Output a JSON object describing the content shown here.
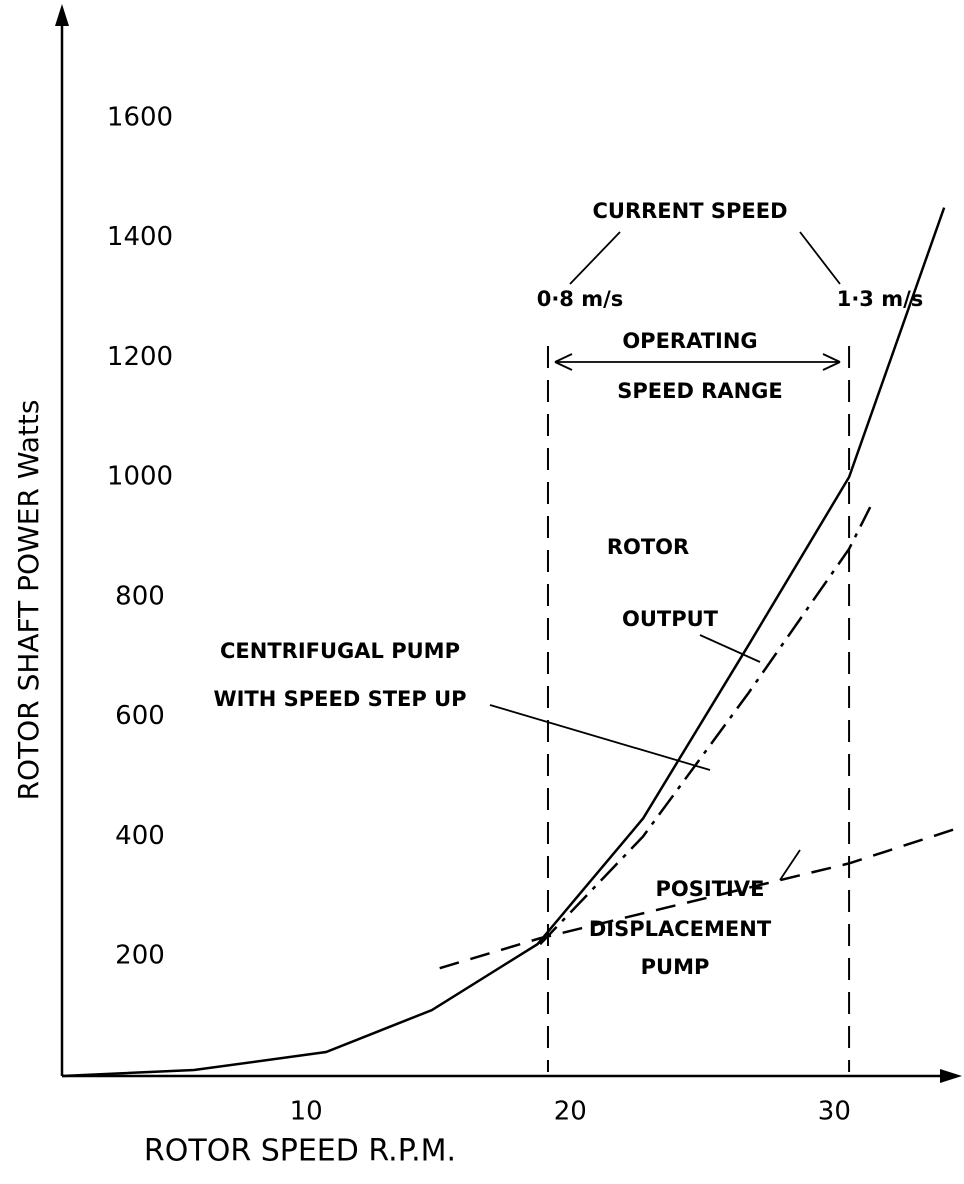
{
  "chart_data": {
    "type": "line",
    "x_label": "ROTOR SPEED   R.P.M.",
    "y_label": "ROTOR SHAFT POWER  Watts",
    "xlim": [
      0,
      34
    ],
    "xticks": [
      10,
      20,
      30
    ],
    "ylim": [
      0,
      1780
    ],
    "yticks": [
      200,
      400,
      600,
      800,
      1000,
      1200,
      1400,
      1600
    ],
    "grid": false,
    "series": [
      {
        "style": "solid",
        "color": "#000000",
        "x": [
          0,
          5,
          10,
          14,
          18,
          22,
          26,
          29.8,
          33.4
        ],
        "values": [
          0,
          10,
          40,
          110,
          220,
          430,
          720,
          1000,
          1450
        ]
      },
      {
        "style": "dashdot",
        "color": "#000000",
        "x": [
          18.1,
          22,
          26,
          29.8,
          30.6
        ],
        "values": [
          220,
          400,
          640,
          880,
          950
        ]
      },
      {
        "style": "dashed",
        "color": "#000000",
        "x": [
          14.3,
          18.1,
          29.8,
          34
        ],
        "values": [
          180,
          230,
          355,
          415
        ]
      }
    ],
    "reference_lines": [
      18.4,
      29.8
    ],
    "annotations": [
      "CURRENT SPEED",
      "0·8 m/s",
      "1·3 m/s",
      "OPERATING",
      "SPEED RANGE",
      "ROTOR",
      "OUTPUT",
      "CENTRIFUGAL PUMP",
      "WITH SPEED STEP UP",
      "POSITIVE",
      "DISPLACEMENT",
      "PUMP"
    ]
  }
}
